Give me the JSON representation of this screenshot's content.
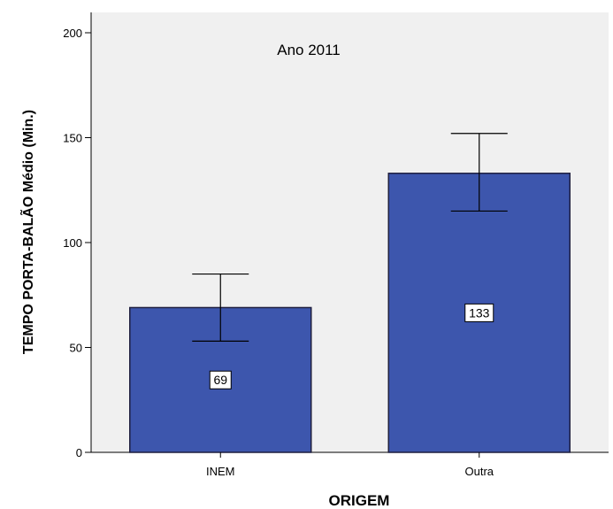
{
  "chart_data": {
    "type": "bar",
    "annotation": "Ano 2011",
    "xlabel": "ORIGEM",
    "ylabel": "TEMPO PORTA-BALÃO  Médio (Min.)",
    "categories": [
      "INEM",
      "Outra"
    ],
    "values": [
      69,
      133
    ],
    "data_labels": [
      "69",
      "133"
    ],
    "error_bars": [
      {
        "low": 53,
        "high": 85
      },
      {
        "low": 115,
        "high": 152
      }
    ],
    "ylim": [
      0,
      210
    ],
    "yticks": [
      0,
      50,
      100,
      150,
      200
    ],
    "ytick_labels": [
      "0",
      "50",
      "100",
      "150",
      "200"
    ],
    "grid": false,
    "colors": {
      "bar": "#3d56ad",
      "bar_edge": "#1f1f3f",
      "plot_background": "#f0f0f0",
      "error_bar": "#000000"
    }
  }
}
